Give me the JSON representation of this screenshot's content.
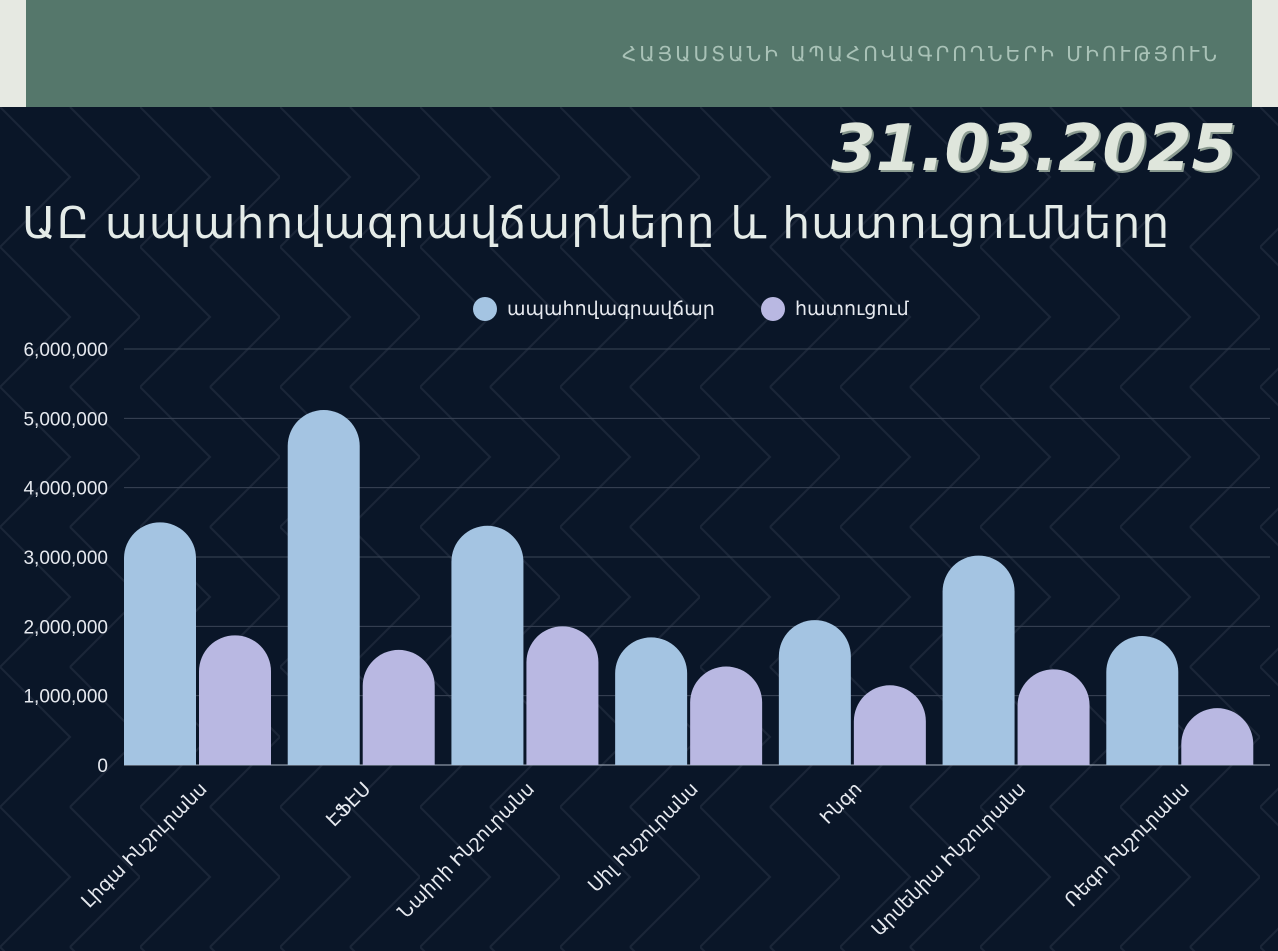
{
  "header": {
    "banner_text": "ՀԱՅԱՍՏԱՆԻ ԱՊԱՀՈՎԱԳՐՈՂՆԵՐԻ ՄԻՈՒԹՅՈՒՆ",
    "date": "31.03.2025"
  },
  "colors": {
    "background": "#0a1628",
    "banner": "#55776b",
    "series_premium": "#a4c4e2",
    "series_claims": "#b9b8e2",
    "gridline": "#3a4556"
  },
  "chart_data": {
    "type": "bar",
    "title": "ԱԸ ապահովագրավճարները և հատուցումները",
    "categories": [
      "Լիգա Ինշուրանս",
      "ԷՖԷՍ",
      "Նաիրի Ինշուրանս",
      "Սիլ Ինշուրանս",
      "Ինգո",
      "Արմենիա Ինշուրանս",
      "Ռեգո Ինշուրանս"
    ],
    "series": [
      {
        "name": "ապահովագրավճար",
        "values": [
          3500000,
          5120000,
          3450000,
          1840000,
          2090000,
          3020000,
          1860000
        ]
      },
      {
        "name": "հատուցում",
        "values": [
          1870000,
          1660000,
          2000000,
          1420000,
          1150000,
          1380000,
          820000
        ]
      }
    ],
    "ylim": [
      0,
      6000000
    ],
    "yticks": [
      0,
      1000000,
      2000000,
      3000000,
      4000000,
      5000000,
      6000000
    ],
    "ytick_labels": [
      "0",
      "1,000,000",
      "2,000,000",
      "3,000,000",
      "4,000,000",
      "5,000,000",
      "6,000,000"
    ],
    "grid": true,
    "legend_position": "top-center"
  }
}
